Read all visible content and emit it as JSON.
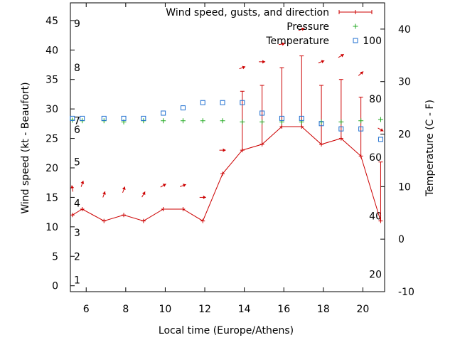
{
  "chart_data": {
    "type": "line",
    "xlabel": "Local time (Europe/Athens)",
    "ylabel_left": "Wind speed (kt - Beaufort)",
    "ylabel_right": "Temperature (C - F)",
    "xlim": [
      5.2,
      21.1
    ],
    "ylim_left": [
      -1,
      48
    ],
    "ylim_right": [
      -10,
      45
    ],
    "x_ticks": [
      6,
      8,
      10,
      12,
      14,
      16,
      18,
      20
    ],
    "y_left_ticks": [
      0,
      5,
      10,
      15,
      20,
      25,
      30,
      35,
      40,
      45
    ],
    "y_right_ticks": [
      -10,
      0,
      10,
      20,
      30,
      40
    ],
    "beaufort_labels": [
      {
        "label": "1",
        "kt": 1
      },
      {
        "label": "2",
        "kt": 5
      },
      {
        "label": "3",
        "kt": 9
      },
      {
        "label": "4",
        "kt": 14
      },
      {
        "label": "5",
        "kt": 21
      },
      {
        "label": "6",
        "kt": 26.5
      },
      {
        "label": "7",
        "kt": 28
      },
      {
        "label": "8",
        "kt": 37
      },
      {
        "label": "9",
        "kt": 44.5
      }
    ],
    "fahrenheit_labels": [
      {
        "label": "20",
        "temp_c": -6.7
      },
      {
        "label": "40",
        "temp_c": 4.4
      },
      {
        "label": "60",
        "temp_c": 15.6
      },
      {
        "label": "80",
        "temp_c": 26.7
      },
      {
        "label": "100",
        "temp_c": 37.8
      }
    ],
    "legend": [
      {
        "label": "Wind speed, gusts, and direction",
        "color": "#cc0000"
      },
      {
        "label": "Pressure",
        "color": "#22aa22"
      },
      {
        "label": "Temperature",
        "color": "#1f6fd0"
      }
    ],
    "series": [
      {
        "name": "Wind speed",
        "x": [
          5.3,
          5.8,
          6.9,
          7.9,
          8.9,
          9.9,
          10.9,
          11.9,
          12.9,
          13.9,
          14.9,
          15.9,
          16.9,
          17.9,
          18.9,
          19.9,
          20.9
        ],
        "values": [
          12,
          13,
          11,
          12,
          11,
          13,
          13,
          11,
          19,
          23,
          24,
          27,
          27,
          24,
          25,
          22,
          11
        ]
      },
      {
        "name": "Gusts",
        "x": [
          13.9,
          14.9,
          15.9,
          16.9,
          17.9,
          18.9,
          19.9,
          20.9
        ],
        "values": [
          33,
          34,
          37,
          39,
          34,
          35,
          32,
          21
        ]
      },
      {
        "name": "Wind direction arrows",
        "x": [
          5.3,
          5.8,
          6.9,
          7.9,
          8.9,
          9.9,
          10.9,
          11.9,
          12.9,
          13.9,
          14.9,
          15.9,
          16.9,
          17.9,
          18.9,
          19.9,
          20.9
        ],
        "arrow_kt": [
          16.5,
          17.3,
          15.5,
          16.3,
          15.5,
          17,
          17,
          15,
          23,
          37,
          38,
          41,
          43.5,
          38,
          39,
          36,
          26.5
        ],
        "direction_deg": [
          170,
          200,
          200,
          200,
          210,
          240,
          250,
          270,
          270,
          250,
          270,
          260,
          250,
          250,
          240,
          230,
          300
        ]
      },
      {
        "name": "Pressure",
        "x": [
          5.3,
          5.8,
          6.9,
          7.9,
          8.9,
          9.9,
          10.9,
          11.9,
          12.9,
          13.9,
          14.9,
          15.9,
          16.9,
          17.9,
          18.9,
          19.9,
          20.9
        ],
        "values": [
          28.1,
          28.0,
          28.0,
          27.8,
          28.0,
          28.0,
          28.0,
          28.0,
          28.0,
          27.8,
          27.8,
          27.8,
          27.8,
          27.8,
          27.8,
          28.0,
          28.2
        ]
      },
      {
        "name": "Temperature",
        "axis": "right",
        "x": [
          5.3,
          5.8,
          6.9,
          7.9,
          8.9,
          9.9,
          10.9,
          11.9,
          12.9,
          13.9,
          14.9,
          15.9,
          16.9,
          17.9,
          18.9,
          19.9,
          20.9
        ],
        "values": [
          23,
          23,
          23,
          23,
          23,
          24,
          25,
          26,
          26,
          26,
          24,
          23,
          23,
          22,
          21,
          21,
          19
        ]
      }
    ]
  }
}
